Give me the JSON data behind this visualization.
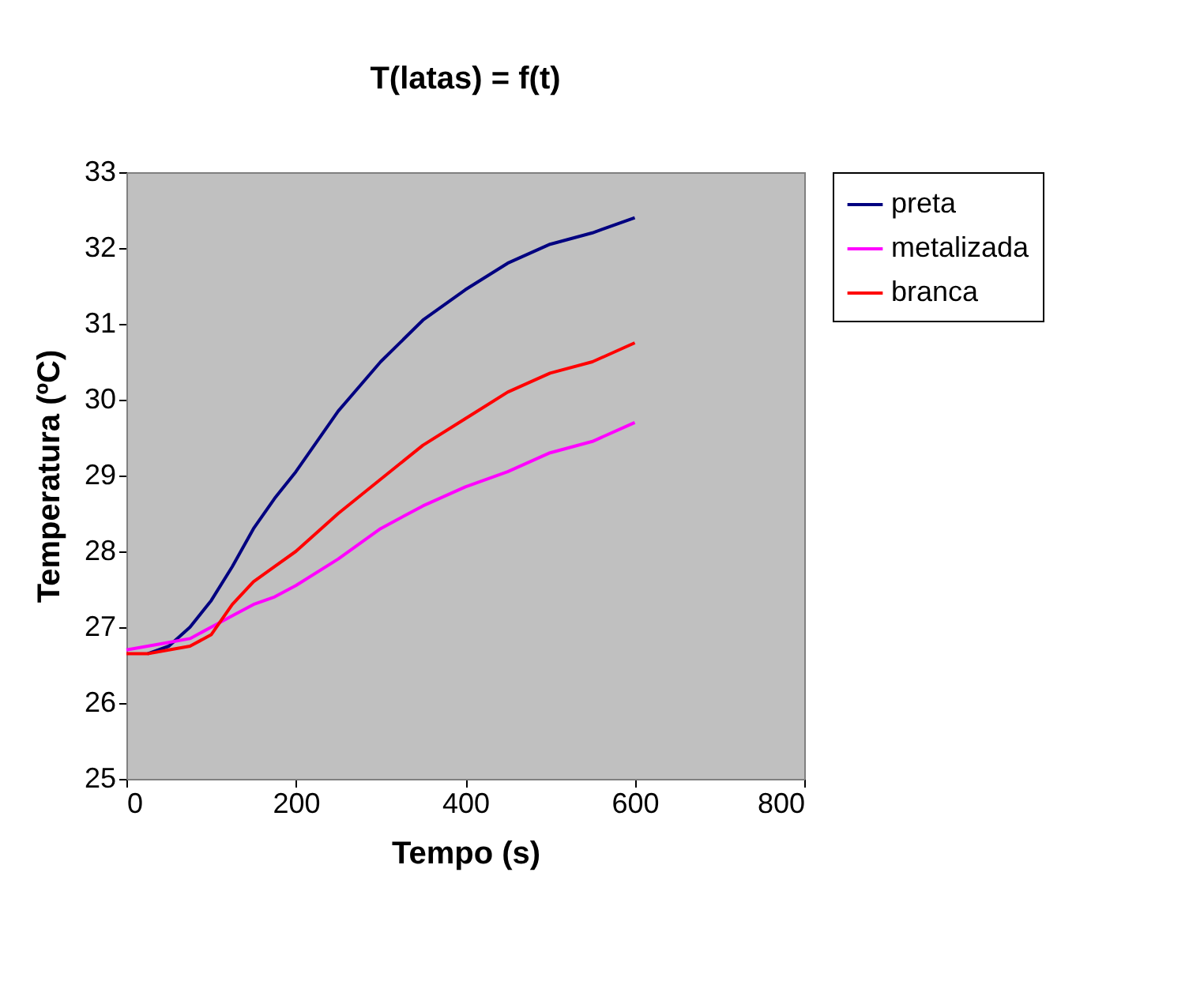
{
  "chart_data": {
    "type": "line",
    "title": "T(latas) = f(t)",
    "xlabel": "Tempo (s)",
    "ylabel": "Temperatura (ºC)",
    "x": [
      0,
      25,
      50,
      75,
      100,
      125,
      150,
      175,
      200,
      250,
      300,
      350,
      400,
      450,
      500,
      550,
      600
    ],
    "series": [
      {
        "name": "preta",
        "color": "#000080",
        "values": [
          null,
          26.65,
          26.75,
          27.0,
          27.35,
          27.8,
          28.3,
          28.7,
          29.05,
          29.85,
          30.5,
          31.05,
          31.45,
          31.8,
          32.05,
          32.2,
          32.4
        ]
      },
      {
        "name": "metalizada",
        "color": "#ff00ff",
        "values": [
          26.7,
          26.75,
          26.8,
          26.85,
          27.0,
          27.15,
          27.3,
          27.4,
          27.55,
          27.9,
          28.3,
          28.6,
          28.85,
          29.05,
          29.3,
          29.45,
          29.7
        ]
      },
      {
        "name": "branca",
        "color": "#ff0000",
        "values": [
          26.65,
          26.65,
          26.7,
          26.75,
          26.9,
          27.3,
          27.6,
          27.8,
          28.0,
          28.5,
          28.95,
          29.4,
          29.75,
          30.1,
          30.35,
          30.5,
          30.75
        ]
      }
    ],
    "xlim": [
      0,
      800
    ],
    "xticks": [
      0,
      200,
      400,
      600,
      800
    ],
    "ylim": [
      25,
      33
    ],
    "yticks": [
      25,
      26,
      27,
      28,
      29,
      30,
      31,
      32,
      33
    ],
    "grid": false,
    "legend": "right",
    "marker": "none",
    "line_style": "solid"
  }
}
